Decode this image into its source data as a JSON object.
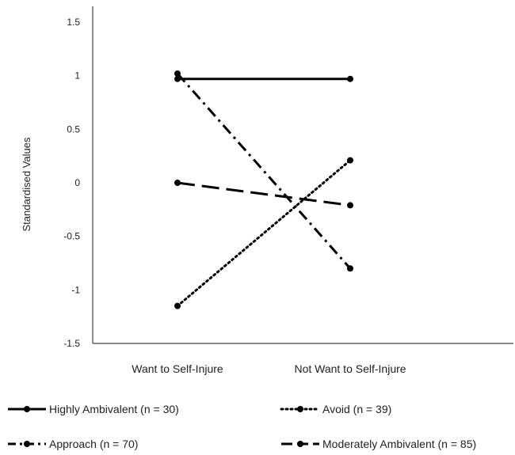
{
  "chart_data": {
    "type": "line",
    "title": "",
    "xlabel": "",
    "ylabel": "Standardised Values",
    "categories": [
      "Want to Self-Injure",
      "Not Want to Self-Injure"
    ],
    "ylim": [
      -1.5,
      1.5
    ],
    "yticks": [
      "1.5",
      "1",
      "0.5",
      "0",
      "-0.5",
      "-1",
      "-1.5"
    ],
    "grid": false,
    "legend_position": "bottom",
    "series": [
      {
        "name": "Highly Ambivalent (n = 30)",
        "values": [
          0.97,
          0.97
        ],
        "line_style": "solid",
        "color": "#000000"
      },
      {
        "name": "Avoid (n = 39)",
        "values": [
          -1.15,
          0.21
        ],
        "line_style": "dotted",
        "color": "#000000"
      },
      {
        "name": "Approach (n = 70)",
        "values": [
          1.02,
          -0.8
        ],
        "line_style": "dash-dot",
        "color": "#000000"
      },
      {
        "name": "Moderately Ambivalent (n = 85)",
        "values": [
          0.0,
          -0.21
        ],
        "line_style": "long-dash",
        "color": "#000000"
      }
    ]
  }
}
